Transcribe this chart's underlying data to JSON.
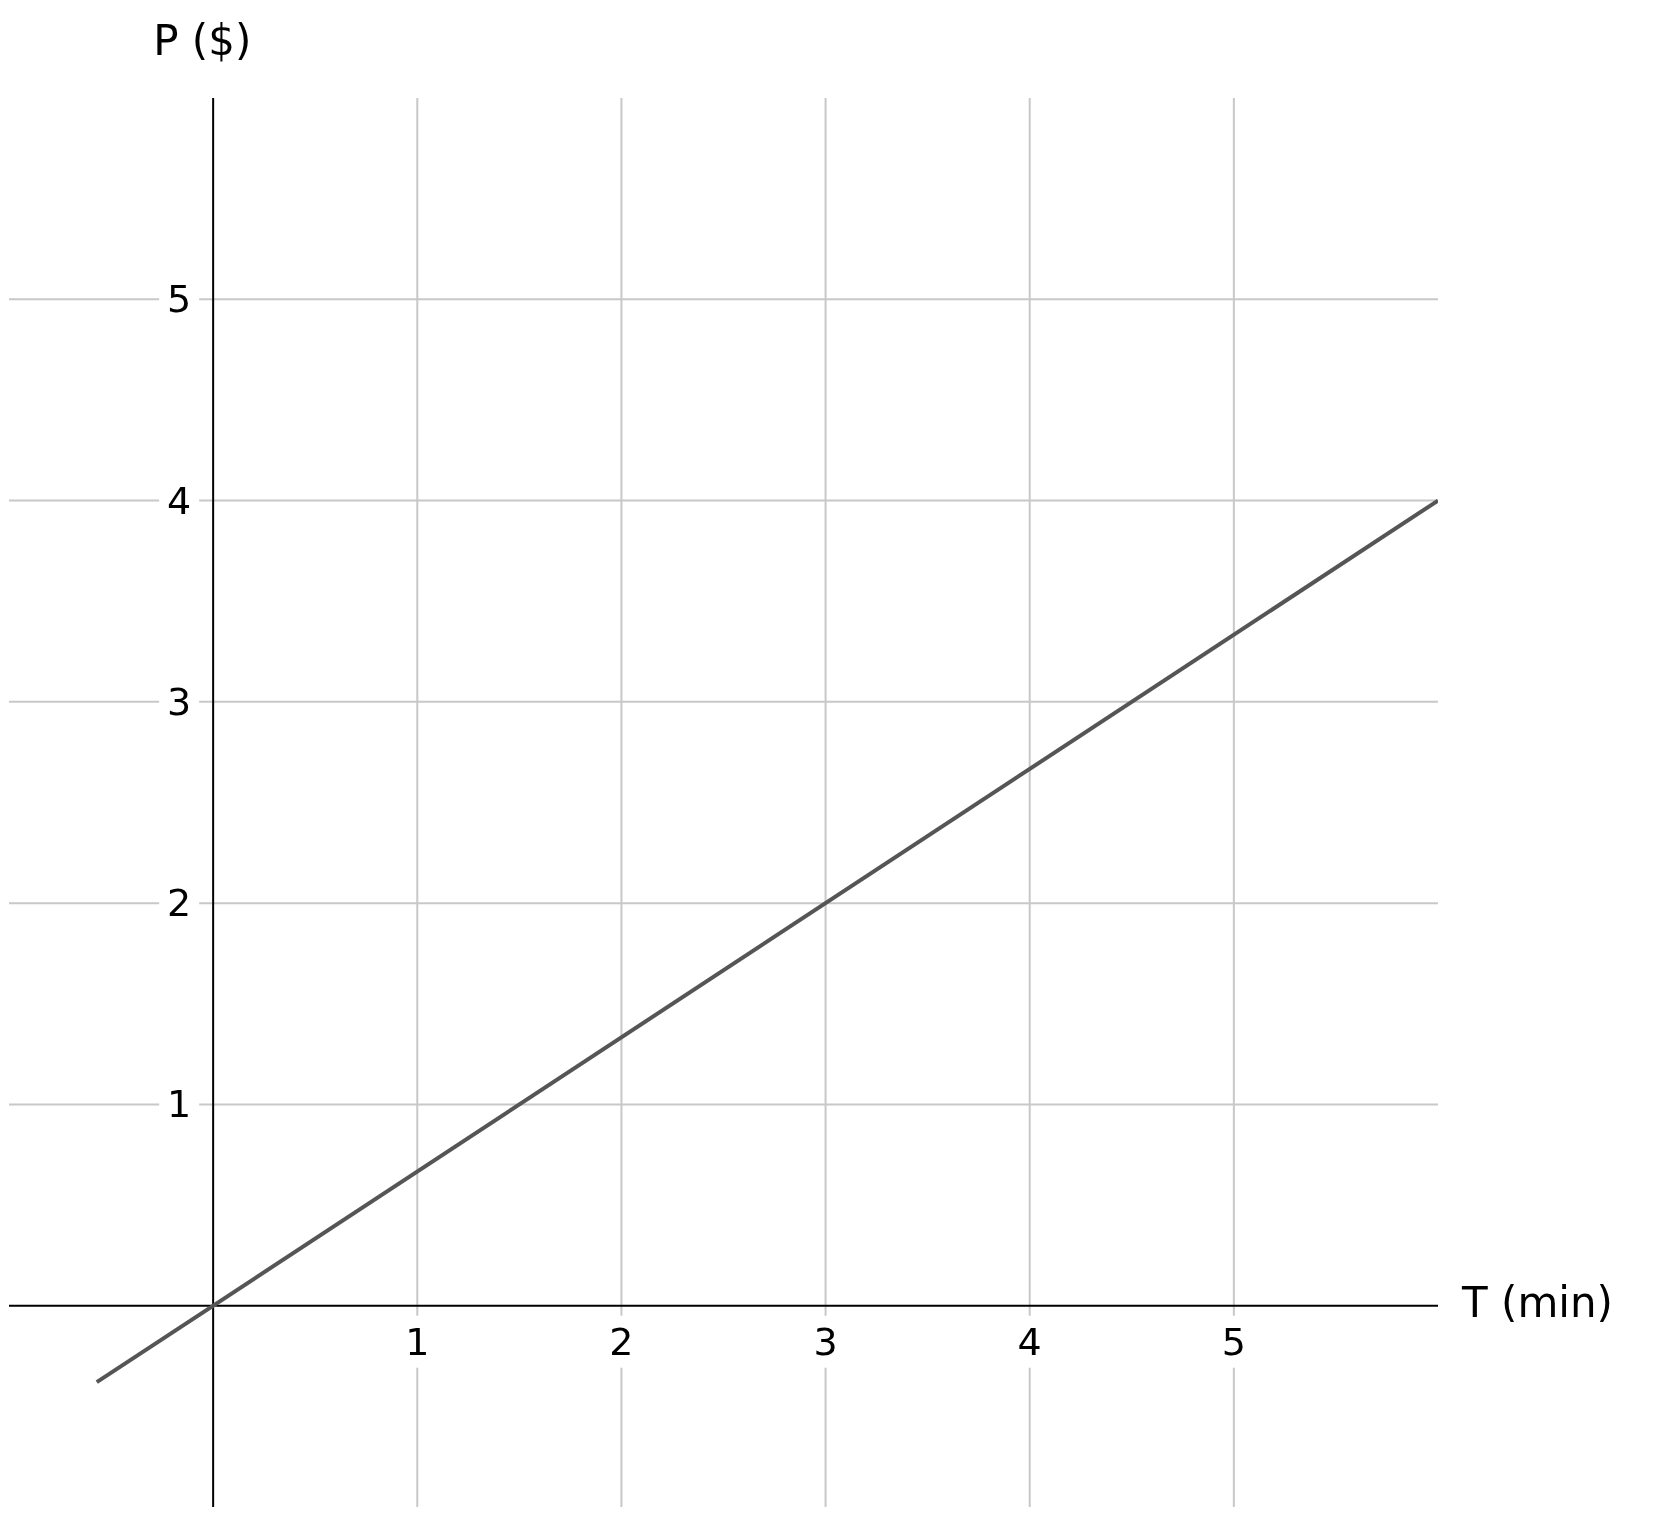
{
  "chart_data": {
    "type": "line",
    "xlabel": "T (min)",
    "ylabel": "P ($)",
    "x": [
      -0.57,
      6
    ],
    "series": [
      {
        "color": "#555555",
        "values": [
          -0.38,
          4
        ]
      }
    ],
    "xlim": [
      -1,
      6
    ],
    "ylim": [
      -1,
      6
    ],
    "xticks": [
      1,
      2,
      3,
      4,
      5
    ],
    "yticks": [
      1,
      2,
      3,
      4,
      5
    ],
    "grid": true,
    "marker": "none",
    "line_style": "solid"
  }
}
